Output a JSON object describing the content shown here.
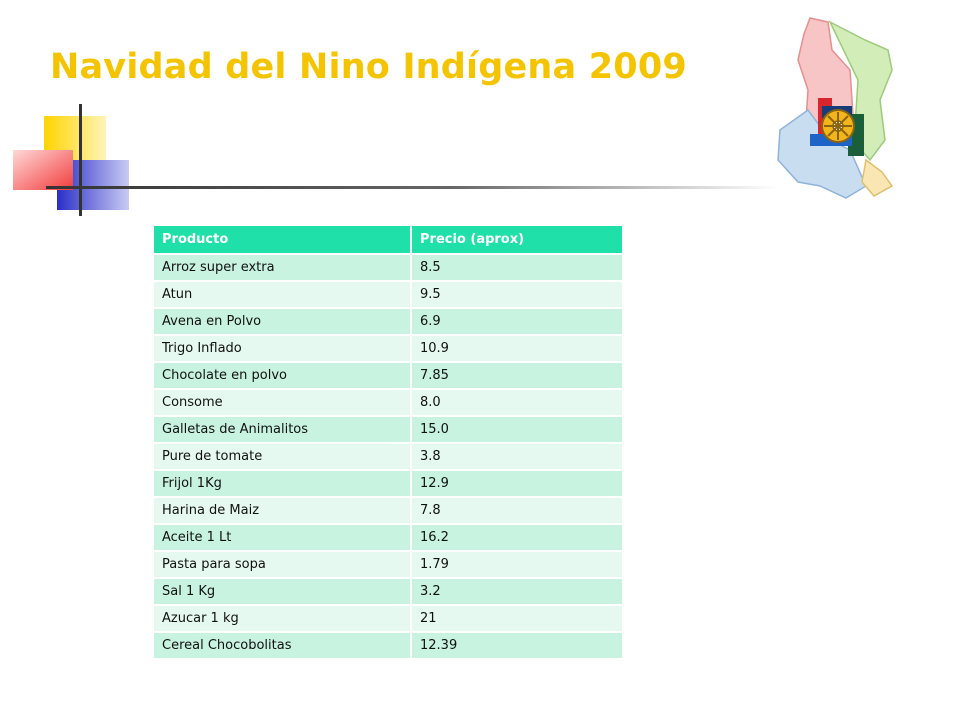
{
  "slide": {
    "title": "Navidad del Nino Indígena 2009"
  },
  "colors": {
    "title": "#F5C400",
    "header_bg": "#1EE0A8",
    "row_odd": "#C9F3E1",
    "row_even": "#E6F9F1"
  },
  "logo": {
    "icon": "rotary-wheel-map-icon"
  },
  "table": {
    "headers": [
      "Producto",
      "Precio (aprox)"
    ],
    "rows": [
      {
        "producto": "Arroz  super extra",
        "precio": "8.5"
      },
      {
        "producto": "Atun",
        "precio": "9.5"
      },
      {
        "producto": "Avena en Polvo",
        "precio": "6.9"
      },
      {
        "producto": "Trigo Inflado",
        "precio": "10.9"
      },
      {
        "producto": "Chocolate en polvo",
        "precio": "7.85"
      },
      {
        "producto": "Consome",
        "precio": "8.0"
      },
      {
        "producto": "Galletas de Animalitos",
        "precio": "15.0"
      },
      {
        "producto": "Pure de tomate",
        "precio": "3.8"
      },
      {
        "producto": "Frijol 1Kg",
        "precio": "12.9"
      },
      {
        "producto": "Harina de Maiz",
        "precio": "7.8"
      },
      {
        "producto": "Aceite 1 Lt",
        "precio": "16.2"
      },
      {
        "producto": "Pasta para sopa",
        "precio": "1.79"
      },
      {
        "producto": "Sal 1 Kg",
        "precio": "3.2"
      },
      {
        "producto": "Azucar 1 kg",
        "precio": "21"
      },
      {
        "producto": "Cereal Chocobolitas",
        "precio": "12.39"
      }
    ]
  }
}
